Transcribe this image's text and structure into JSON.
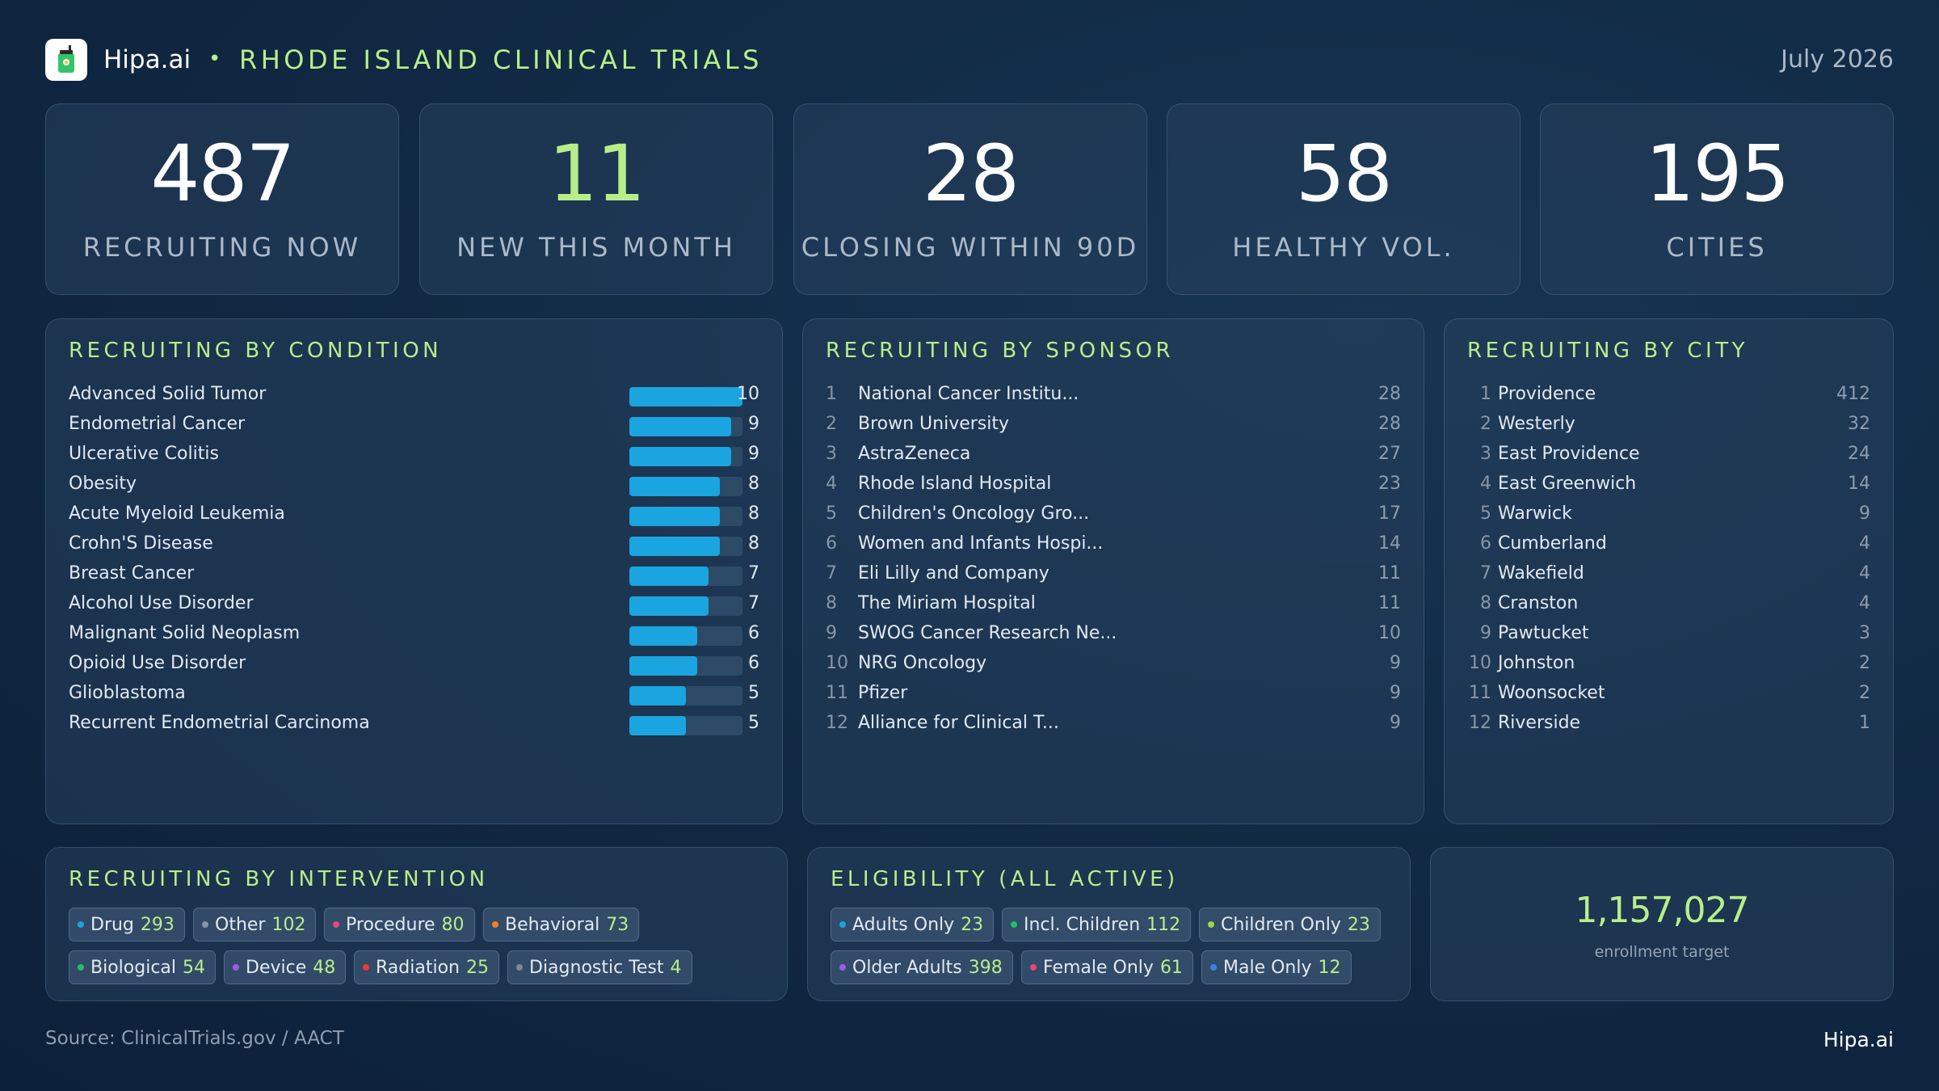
{
  "header": {
    "brand": "Hipa.ai",
    "separator": "•",
    "title": "RHODE ISLAND CLINICAL TRIALS",
    "date": "July 2026",
    "logo_icon": "cup-icon"
  },
  "kpis": [
    {
      "value": "487",
      "label": "RECRUITING NOW"
    },
    {
      "value": "11",
      "label": "NEW THIS MONTH"
    },
    {
      "value": "28",
      "label": "CLOSING WITHIN 90D"
    },
    {
      "value": "58",
      "label": "HEALTHY VOL."
    },
    {
      "value": "195",
      "label": "CITIES"
    }
  ],
  "condition": {
    "title": "RECRUITING BY CONDITION",
    "max": 10,
    "items": [
      {
        "name": "Advanced Solid Tumor",
        "count": 10
      },
      {
        "name": "Endometrial Cancer",
        "count": 9
      },
      {
        "name": "Ulcerative Colitis",
        "count": 9
      },
      {
        "name": "Obesity",
        "count": 8
      },
      {
        "name": "Acute Myeloid Leukemia",
        "count": 8
      },
      {
        "name": "Crohn'S Disease",
        "count": 8
      },
      {
        "name": "Breast Cancer",
        "count": 7
      },
      {
        "name": "Alcohol Use Disorder",
        "count": 7
      },
      {
        "name": "Malignant Solid Neoplasm",
        "count": 6
      },
      {
        "name": "Opioid Use Disorder",
        "count": 6
      },
      {
        "name": "Glioblastoma",
        "count": 5
      },
      {
        "name": "Recurrent Endometrial Carcinoma",
        "count": 5
      }
    ]
  },
  "sponsor": {
    "title": "RECRUITING BY SPONSOR",
    "items": [
      {
        "rank": "1",
        "name": "National Cancer Institu...",
        "count": "28"
      },
      {
        "rank": "2",
        "name": "Brown University",
        "count": "28"
      },
      {
        "rank": "3",
        "name": "AstraZeneca",
        "count": "27"
      },
      {
        "rank": "4",
        "name": "Rhode Island Hospital",
        "count": "23"
      },
      {
        "rank": "5",
        "name": "Children's Oncology Gro...",
        "count": "17"
      },
      {
        "rank": "6",
        "name": "Women and Infants Hospi...",
        "count": "14"
      },
      {
        "rank": "7",
        "name": "Eli Lilly and Company",
        "count": "11"
      },
      {
        "rank": "8",
        "name": "The Miriam Hospital",
        "count": "11"
      },
      {
        "rank": "9",
        "name": "SWOG Cancer Research Ne...",
        "count": "10"
      },
      {
        "rank": "10",
        "name": "NRG Oncology",
        "count": "9"
      },
      {
        "rank": "11",
        "name": "Pfizer",
        "count": "9"
      },
      {
        "rank": "12",
        "name": "Alliance for Clinical T...",
        "count": "9"
      }
    ]
  },
  "city": {
    "title": "RECRUITING BY CITY",
    "items": [
      {
        "rank": "1",
        "name": "Providence",
        "count": "412"
      },
      {
        "rank": "2",
        "name": "Westerly",
        "count": "32"
      },
      {
        "rank": "3",
        "name": "East Providence",
        "count": "24"
      },
      {
        "rank": "4",
        "name": "East Greenwich",
        "count": "14"
      },
      {
        "rank": "5",
        "name": "Warwick",
        "count": "9"
      },
      {
        "rank": "6",
        "name": "Cumberland",
        "count": "4"
      },
      {
        "rank": "7",
        "name": "Wakefield",
        "count": "4"
      },
      {
        "rank": "8",
        "name": "Cranston",
        "count": "4"
      },
      {
        "rank": "9",
        "name": "Pawtucket",
        "count": "3"
      },
      {
        "rank": "10",
        "name": "Johnston",
        "count": "2"
      },
      {
        "rank": "11",
        "name": "Woonsocket",
        "count": "2"
      },
      {
        "rank": "12",
        "name": "Riverside",
        "count": "1"
      }
    ]
  },
  "intervention": {
    "title": "RECRUITING BY INTERVENTION",
    "chips": [
      {
        "label": "Drug",
        "count": "293",
        "color": "#1aa4e0"
      },
      {
        "label": "Other",
        "count": "102",
        "color": "#8b95a1"
      },
      {
        "label": "Procedure",
        "count": "80",
        "color": "#e8467a"
      },
      {
        "label": "Behavioral",
        "count": "73",
        "color": "#f57c2a"
      },
      {
        "label": "Biological",
        "count": "54",
        "color": "#23c065"
      },
      {
        "label": "Device",
        "count": "48",
        "color": "#9b5de5"
      },
      {
        "label": "Radiation",
        "count": "25",
        "color": "#ea3b3b"
      },
      {
        "label": "Diagnostic Test",
        "count": "4",
        "color": "#7c8793"
      }
    ]
  },
  "eligibility": {
    "title": "ELIGIBILITY (ALL ACTIVE)",
    "chips": [
      {
        "label": "Adults Only",
        "count": "23",
        "color": "#1aa4e0"
      },
      {
        "label": "Incl. Children",
        "count": "112",
        "color": "#23c065"
      },
      {
        "label": "Children Only",
        "count": "23",
        "color": "#9bd648"
      },
      {
        "label": "Older Adults",
        "count": "398",
        "color": "#9b5de5"
      },
      {
        "label": "Female Only",
        "count": "61",
        "color": "#e8467a"
      },
      {
        "label": "Male Only",
        "count": "12",
        "color": "#3f7fe8"
      }
    ]
  },
  "enrollment": {
    "value": "1,157,027",
    "label": "enrollment target"
  },
  "footer": {
    "source": "Source: ClinicalTrials.gov /  AACT",
    "brand": "Hipa.ai"
  }
}
